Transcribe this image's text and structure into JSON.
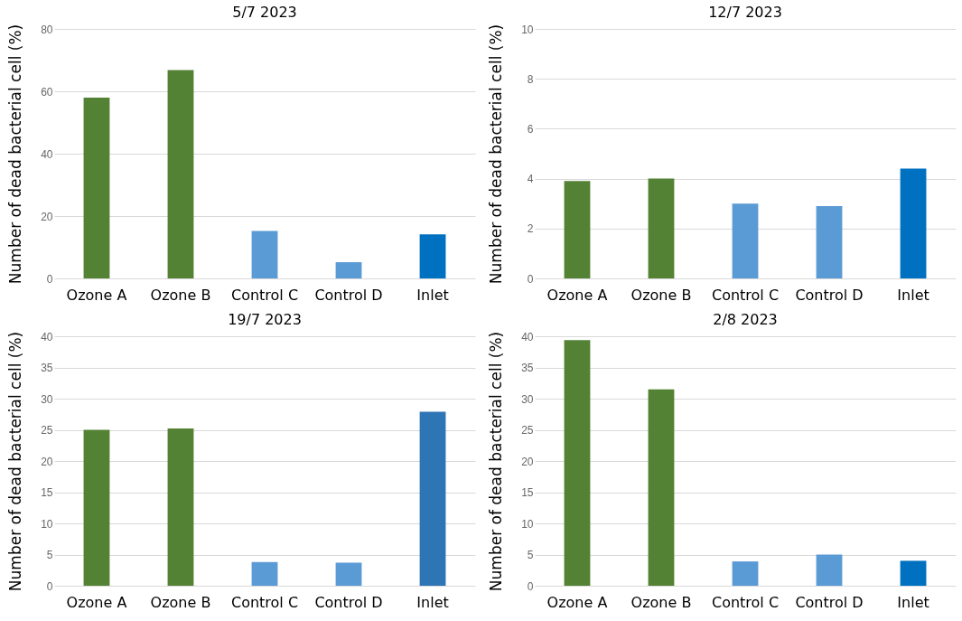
{
  "chart_data": [
    {
      "type": "bar",
      "title": "5/7 2023",
      "ylabel": "Number of dead bacterial cell (%)",
      "categories": [
        "Ozone A",
        "Ozone B",
        "Control C",
        "Control D",
        "Inlet"
      ],
      "values": [
        58,
        66.8,
        15.2,
        5.2,
        14.1
      ],
      "colors": [
        "#548235",
        "#548235",
        "#5b9bd5",
        "#5b9bd5",
        "#0070c0"
      ],
      "ylim": [
        0,
        80
      ],
      "yticks": [
        0,
        20,
        40,
        60,
        80
      ],
      "grid": "y"
    },
    {
      "type": "bar",
      "title": "12/7 2023",
      "ylabel": "Number of dead bacterial cell (%)",
      "categories": [
        "Ozone A",
        "Ozone B",
        "Control C",
        "Control D",
        "Inlet"
      ],
      "values": [
        3.9,
        4.0,
        3.0,
        2.9,
        4.4
      ],
      "colors": [
        "#548235",
        "#548235",
        "#5b9bd5",
        "#5b9bd5",
        "#0070c0"
      ],
      "ylim": [
        0,
        10
      ],
      "yticks": [
        0,
        2,
        4,
        6,
        8,
        10
      ],
      "grid": "y"
    },
    {
      "type": "bar",
      "title": "19/7 2023",
      "ylabel": "Number of dead bacterial cell (%)",
      "categories": [
        "Ozone A",
        "Ozone B",
        "Control C",
        "Control D",
        "Inlet"
      ],
      "values": [
        25.0,
        25.2,
        3.8,
        3.7,
        27.9
      ],
      "colors": [
        "#548235",
        "#548235",
        "#5b9bd5",
        "#5b9bd5",
        "#2e75b6"
      ],
      "ylim": [
        0,
        40
      ],
      "yticks": [
        0,
        5,
        10,
        15,
        20,
        25,
        30,
        35,
        40
      ],
      "grid": "y"
    },
    {
      "type": "bar",
      "title": "2/8 2023",
      "ylabel": "Number of dead bacterial cell (%)",
      "categories": [
        "Ozone A",
        "Ozone B",
        "Control C",
        "Control D",
        "Inlet"
      ],
      "values": [
        39.4,
        31.5,
        3.9,
        5.0,
        4.0
      ],
      "colors": [
        "#548235",
        "#548235",
        "#5b9bd5",
        "#5b9bd5",
        "#0070c0"
      ],
      "ylim": [
        0,
        40
      ],
      "yticks": [
        0,
        5,
        10,
        15,
        20,
        25,
        30,
        35,
        40
      ],
      "grid": "y"
    }
  ]
}
